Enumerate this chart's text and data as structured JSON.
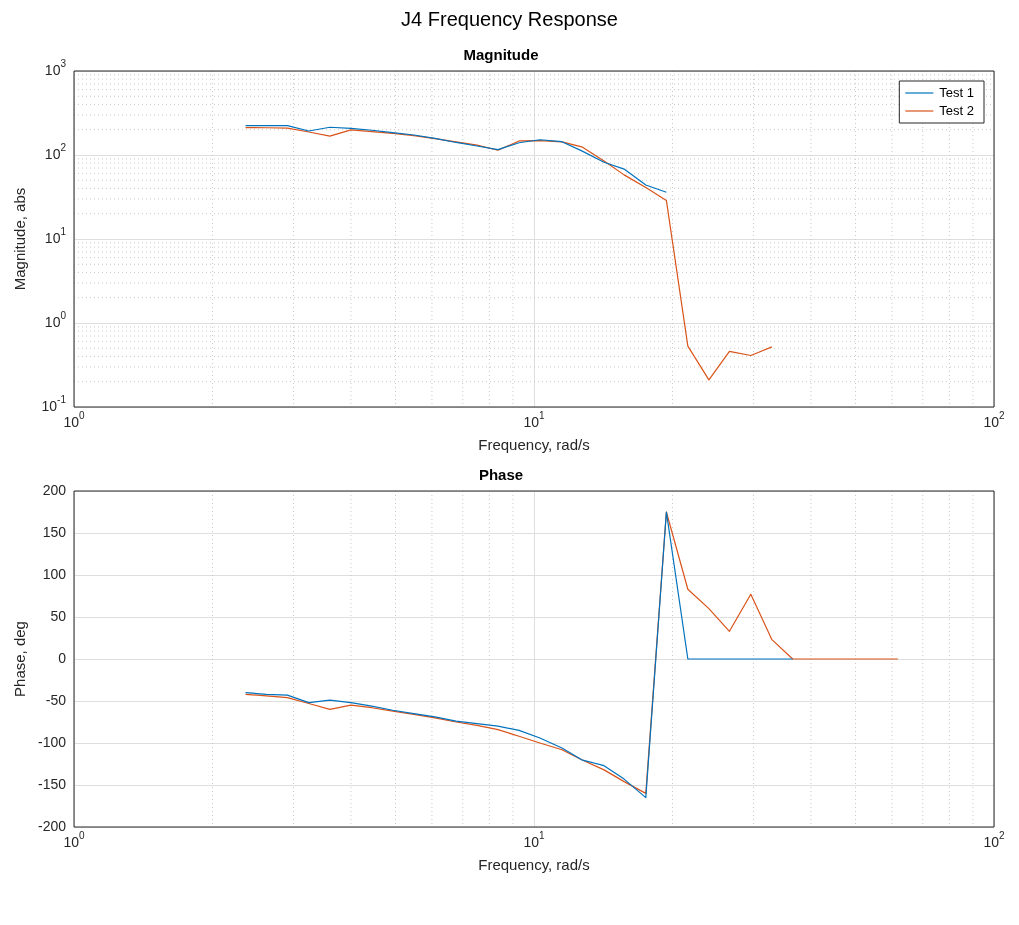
{
  "chart_data": [
    {
      "type": "line",
      "title": "Magnitude",
      "xlabel": "Frequency, rad/s",
      "ylabel": "Magnitude, abs",
      "annotations": [
        "J4 Frequency Response"
      ],
      "log": "xy",
      "grid": true,
      "legend": "top right",
      "xlim": [
        1,
        100
      ],
      "xticks": [
        {
          "value": 1,
          "label": "10$^{0}$"
        },
        {
          "value": 10,
          "label": "10$^{1}$"
        },
        {
          "value": 100,
          "label": "10$^{2}$"
        }
      ],
      "ylim": [
        0.1,
        1000
      ],
      "yticks": [
        {
          "value": 0.1,
          "label": "10$^{-1}$"
        },
        {
          "value": 1,
          "label": "10$^{0}$"
        },
        {
          "value": 10,
          "label": "10$^{1}$"
        },
        {
          "value": 100,
          "label": "10$^{2}$"
        },
        {
          "value": 1000,
          "label": "10$^{3}$"
        }
      ],
      "series": [
        {
          "name": "Test 1",
          "color": "#0072bd",
          "x": [
            2.36,
            2.62,
            2.91,
            3.24,
            3.6,
            4.0,
            4.44,
            4.93,
            5.48,
            6.09,
            6.77,
            7.52,
            8.35,
            9.28,
            10.3,
            11.5,
            12.7,
            14.2,
            15.7,
            17.5,
            19.4
          ],
          "values": [
            224,
            224,
            224,
            193,
            214,
            207,
            197,
            185,
            173,
            158,
            141,
            128,
            116,
            140,
            152,
            144,
            112,
            82,
            68,
            44,
            36
          ]
        },
        {
          "name": "Test 2",
          "color": "#d95319",
          "x": [
            2.36,
            2.62,
            2.91,
            3.24,
            3.6,
            4.0,
            4.44,
            4.93,
            5.48,
            6.09,
            6.77,
            7.52,
            8.35,
            9.28,
            10.3,
            11.5,
            12.7,
            14.2,
            15.7,
            17.5,
            19.4,
            21.6,
            24.0,
            26.6,
            29.6,
            32.9
          ],
          "values": [
            212,
            211,
            209,
            188,
            168,
            199,
            190,
            181,
            170,
            157,
            143,
            131,
            114,
            147,
            148,
            143,
            125,
            85,
            58,
            41,
            28.8,
            0.53,
            0.21,
            0.46,
            0.41,
            0.52
          ]
        }
      ]
    },
    {
      "type": "line",
      "title": "Phase",
      "xlabel": "Frequency, rad/s",
      "ylabel": "Phase, deg",
      "log": "x",
      "grid": true,
      "xlim": [
        1,
        100
      ],
      "xticks": [
        {
          "value": 1,
          "label": "10$^{0}$"
        },
        {
          "value": 10,
          "label": "10$^{1}$"
        },
        {
          "value": 100,
          "label": "10$^{2}$"
        }
      ],
      "ylim": [
        -200,
        200
      ],
      "yticks": [
        -200,
        -150,
        -100,
        -50,
        0,
        50,
        100,
        150,
        200
      ],
      "series": [
        {
          "color": "#0072bd",
          "x": [
            2.36,
            2.62,
            2.91,
            3.24,
            3.6,
            4.0,
            4.44,
            4.93,
            5.48,
            6.09,
            6.77,
            7.52,
            8.35,
            9.28,
            10.3,
            11.5,
            12.7,
            14.2,
            15.7,
            17.5,
            19.4,
            21.6,
            24.0,
            26.6,
            29.6,
            32.9,
            36.5
          ],
          "values": [
            -40,
            -42,
            -43,
            -52,
            -49,
            -52,
            -56,
            -61,
            -65,
            -69,
            -74,
            -77,
            -80,
            -85,
            -94,
            -106,
            -120,
            -127,
            -143,
            -165,
            175,
            0,
            0,
            0,
            0,
            0,
            0
          ]
        },
        {
          "color": "#d95319",
          "x": [
            2.36,
            2.62,
            2.91,
            3.24,
            3.6,
            4.0,
            4.44,
            4.93,
            5.48,
            6.09,
            6.77,
            7.52,
            8.35,
            9.28,
            10.3,
            11.5,
            12.7,
            14.2,
            15.7,
            17.5,
            19.4,
            21.6,
            24.0,
            26.6,
            29.6,
            32.9,
            36.5,
            40.6,
            45.0,
            50,
            55.6,
            61.8
          ],
          "values": [
            -42,
            -44,
            -46,
            -53,
            -60,
            -55,
            -58,
            -62,
            -66,
            -70,
            -75,
            -79,
            -84,
            -92,
            -100,
            -108,
            -120,
            -132,
            -146,
            -160,
            175,
            83,
            60,
            33,
            77,
            23,
            0,
            0,
            0,
            0,
            0,
            0
          ]
        }
      ]
    }
  ]
}
